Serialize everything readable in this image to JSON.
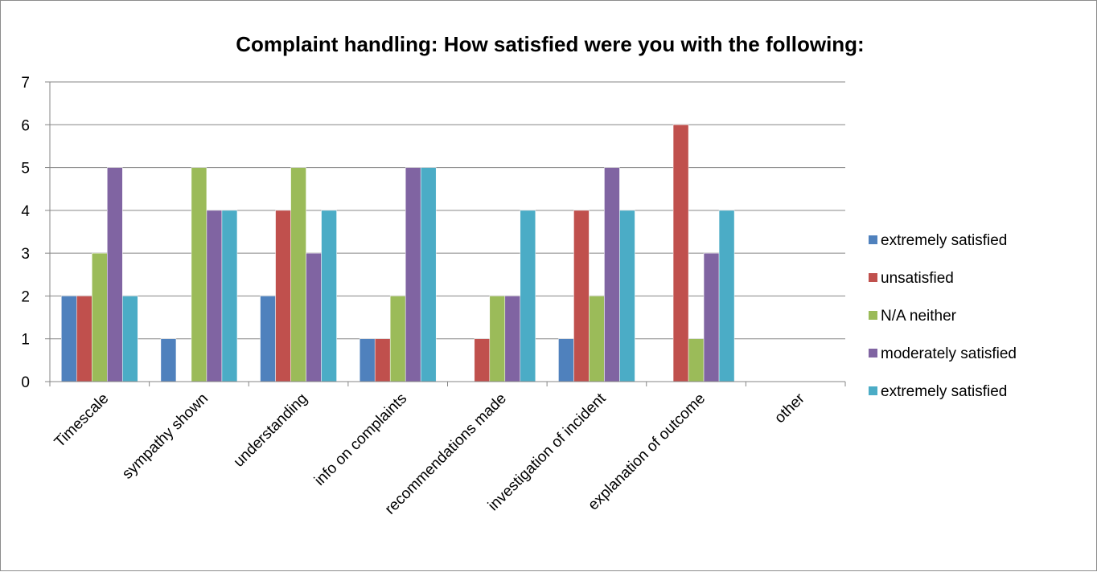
{
  "chart_data": {
    "type": "bar",
    "title": "Complaint handling: How satisfied were you with the following:",
    "xlabel": "",
    "ylabel": "",
    "ylim": [
      0,
      7
    ],
    "yticks": [
      "0",
      "1",
      "2",
      "3",
      "4",
      "5",
      "6",
      "7"
    ],
    "grid": true,
    "legend_position": "right",
    "categories": [
      "Timescale",
      "sympathy shown",
      "understanding",
      "info on complaints",
      "recommendations made",
      "investigation of incident",
      "explanation of outcome",
      "other"
    ],
    "series": [
      {
        "name": "extremely satisfied",
        "color": "#4F81BD",
        "values": [
          2,
          1,
          2,
          1,
          0,
          1,
          0,
          0
        ]
      },
      {
        "name": "unsatisfied",
        "color": "#C0504D",
        "values": [
          2,
          0,
          4,
          1,
          1,
          4,
          6,
          0
        ]
      },
      {
        "name": "N/A neither",
        "color": "#9BBB59",
        "values": [
          3,
          5,
          5,
          2,
          2,
          2,
          1,
          0
        ]
      },
      {
        "name": "moderately satisfied",
        "color": "#8064A2",
        "values": [
          5,
          4,
          3,
          5,
          2,
          5,
          3,
          0
        ]
      },
      {
        "name": "extremely satisfied",
        "color": "#4BACC6",
        "values": [
          2,
          4,
          4,
          5,
          4,
          4,
          4,
          0
        ]
      }
    ]
  }
}
